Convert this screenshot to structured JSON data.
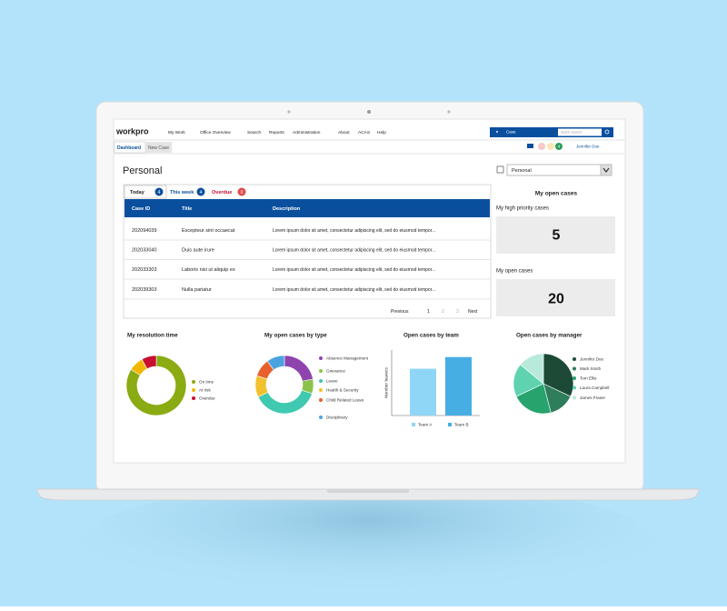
{
  "nav": {
    "logo": "workpro",
    "menu": [
      "My Work",
      "Office Overview",
      "Search",
      "Reports",
      "Administration",
      "About",
      "ACAS",
      "Help"
    ],
    "search_scope": "Case",
    "search_placeholder": "Quick search",
    "notifications": "4",
    "user": "Jennifer Doe"
  },
  "tabs": [
    "Dashboard",
    "New Case"
  ],
  "page_title": "Personal",
  "view_selector": "Personal",
  "case_tabs": [
    {
      "label": "Today",
      "count": "4"
    },
    {
      "label": "This week",
      "count": "4"
    },
    {
      "label": "Overdue",
      "count": "0"
    }
  ],
  "table": {
    "columns": [
      "Case ID",
      "Title",
      "Description"
    ],
    "rows": [
      [
        "202094039",
        "Excepteur sint occaecat",
        "Lorem ipsum dolor sit amet, consectetur adipiscing elit, sed do eiusmod tempor..."
      ],
      [
        "202033040",
        "Duis aute irure",
        "Lorem ipsum dolor sit amet, consectetur adipiscing elit, sed do eiusmod tempor..."
      ],
      [
        "202033303",
        "Laboris nisi ut aliquip ex",
        "Lorem ipsum dolor sit amet, consectetur adipiscing elit, sed do eiusmod tempor..."
      ],
      [
        "202039303",
        "Nulla pariatur",
        "Lorem ipsum dolor sit amet, consectetur adipiscing elit, sed do eiusmod tempor..."
      ]
    ]
  },
  "pagination": [
    "Previous",
    "1",
    "2",
    "3",
    "Next"
  ],
  "summary": {
    "title": "My open cases",
    "cards": [
      {
        "label": "My high priority cases",
        "value": "5"
      },
      {
        "label": "My open cases",
        "value": "20"
      }
    ]
  },
  "charts": [
    {
      "type": "donut",
      "title": "My resolution time",
      "categories": [
        "On time",
        "At risk",
        "Overdue"
      ],
      "values": [
        84,
        8,
        8
      ],
      "colors": [
        "#8aab12",
        "#f2b705",
        "#c8102e"
      ]
    },
    {
      "type": "donut",
      "title": "My open cases by type",
      "categories": [
        "Absence Management",
        "Grievance",
        "Leave",
        "Health & Security",
        "Child Related Leave",
        "Disciplinary"
      ],
      "values": [
        22,
        8,
        38,
        12,
        10,
        10
      ],
      "colors": [
        "#8e44ad",
        "#8bc34a",
        "#3ec9b0",
        "#f2c12e",
        "#e8602c",
        "#4aa3df"
      ]
    },
    {
      "type": "bar",
      "title": "Open cases by team",
      "y_label": "Number leavers",
      "categories": [
        "Team A",
        "Team B"
      ],
      "values": [
        20,
        25
      ],
      "colors": [
        "#8fd6f6",
        "#47aee3"
      ],
      "ylim": [
        0,
        28
      ]
    },
    {
      "type": "pie",
      "title": "Open cases by manager",
      "categories": [
        "Jennifer Doe",
        "Mark Smith",
        "Tom Ellis",
        "Laura Campbell",
        "James Fraser"
      ],
      "values": [
        32,
        14,
        22,
        18,
        14
      ],
      "colors": [
        "#1c4a36",
        "#2e7d5b",
        "#27a36e",
        "#5fd3b0",
        "#b8eadb"
      ]
    }
  ]
}
